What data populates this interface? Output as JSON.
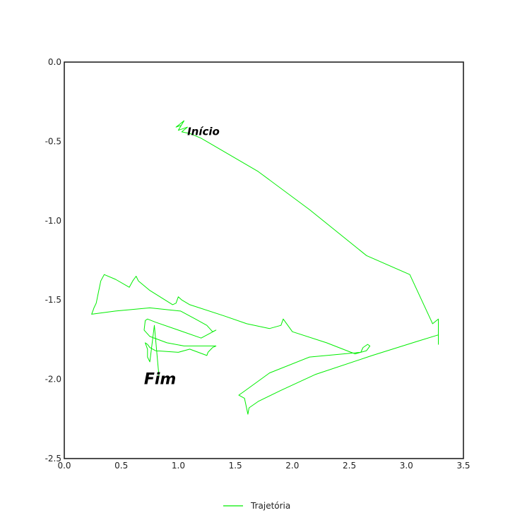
{
  "chart_data": {
    "type": "line",
    "title": "",
    "xlabel": "",
    "ylabel": "",
    "xlim": [
      0.0,
      3.5
    ],
    "ylim": [
      -2.5,
      0.0
    ],
    "x_ticks": [
      0.0,
      0.5,
      1.0,
      1.5,
      2.0,
      2.5,
      3.0,
      3.5
    ],
    "x_tick_labels": [
      "0.0",
      "0.5",
      "1.0",
      "1.5",
      "2.0",
      "2.5",
      "3.0",
      "3.5"
    ],
    "y_ticks": [
      0.0,
      -0.5,
      -1.0,
      -1.5,
      -2.0,
      -2.5
    ],
    "y_tick_labels": [
      "0.0",
      "-0.5",
      "-1.0",
      "-1.5",
      "-2.0",
      "-2.5"
    ],
    "grid": false,
    "legend_position": "bottom-center",
    "series": [
      {
        "name": "Trajetória",
        "color": "#00ee00",
        "points": [
          [
            1.02,
            -0.4
          ],
          [
            0.98,
            -0.41
          ],
          [
            1.05,
            -0.37
          ],
          [
            1.0,
            -0.43
          ],
          [
            1.08,
            -0.41
          ],
          [
            1.03,
            -0.44
          ],
          [
            1.1,
            -0.45
          ],
          [
            1.2,
            -0.48
          ],
          [
            1.7,
            -0.69
          ],
          [
            2.15,
            -0.93
          ],
          [
            2.65,
            -1.22
          ],
          [
            3.03,
            -1.34
          ],
          [
            3.23,
            -1.65
          ],
          [
            3.28,
            -1.62
          ],
          [
            3.28,
            -1.78
          ],
          [
            3.28,
            -1.72
          ],
          [
            3.1,
            -1.76
          ],
          [
            2.7,
            -1.85
          ],
          [
            2.2,
            -1.97
          ],
          [
            1.9,
            -2.07
          ],
          [
            1.7,
            -2.14
          ],
          [
            1.62,
            -2.18
          ],
          [
            1.61,
            -2.22
          ],
          [
            1.58,
            -2.12
          ],
          [
            1.53,
            -2.1
          ],
          [
            1.57,
            -2.08
          ],
          [
            1.8,
            -1.96
          ],
          [
            2.15,
            -1.86
          ],
          [
            2.45,
            -1.84
          ],
          [
            2.6,
            -1.83
          ],
          [
            2.62,
            -1.8
          ],
          [
            2.66,
            -1.78
          ],
          [
            2.68,
            -1.79
          ],
          [
            2.65,
            -1.82
          ],
          [
            2.55,
            -1.84
          ],
          [
            2.3,
            -1.77
          ],
          [
            2.0,
            -1.7
          ],
          [
            1.95,
            -1.65
          ],
          [
            1.92,
            -1.62
          ],
          [
            1.9,
            -1.66
          ],
          [
            1.8,
            -1.68
          ],
          [
            1.6,
            -1.65
          ],
          [
            1.4,
            -1.6
          ],
          [
            1.1,
            -1.53
          ],
          [
            1.03,
            -1.5
          ],
          [
            1.0,
            -1.48
          ],
          [
            0.98,
            -1.52
          ],
          [
            0.95,
            -1.53
          ],
          [
            0.75,
            -1.44
          ],
          [
            0.65,
            -1.38
          ],
          [
            0.63,
            -1.35
          ],
          [
            0.6,
            -1.38
          ],
          [
            0.57,
            -1.42
          ],
          [
            0.45,
            -1.37
          ],
          [
            0.35,
            -1.34
          ],
          [
            0.32,
            -1.38
          ],
          [
            0.3,
            -1.45
          ],
          [
            0.28,
            -1.52
          ],
          [
            0.26,
            -1.55
          ],
          [
            0.25,
            -1.57
          ],
          [
            0.24,
            -1.59
          ],
          [
            0.45,
            -1.57
          ],
          [
            0.75,
            -1.55
          ],
          [
            1.02,
            -1.57
          ],
          [
            1.15,
            -1.62
          ],
          [
            1.25,
            -1.66
          ],
          [
            1.3,
            -1.7
          ],
          [
            1.33,
            -1.69
          ],
          [
            1.2,
            -1.74
          ],
          [
            1.0,
            -1.69
          ],
          [
            0.8,
            -1.64
          ],
          [
            0.73,
            -1.62
          ],
          [
            0.71,
            -1.63
          ],
          [
            0.7,
            -1.69
          ],
          [
            0.75,
            -1.73
          ],
          [
            0.9,
            -1.77
          ],
          [
            1.05,
            -1.79
          ],
          [
            1.15,
            -1.79
          ],
          [
            1.33,
            -1.79
          ],
          [
            1.3,
            -1.8
          ],
          [
            1.26,
            -1.83
          ],
          [
            1.25,
            -1.85
          ],
          [
            1.1,
            -1.81
          ],
          [
            1.0,
            -1.83
          ],
          [
            0.8,
            -1.82
          ],
          [
            0.75,
            -1.8
          ],
          [
            0.73,
            -1.78
          ],
          [
            0.71,
            -1.77
          ],
          [
            0.73,
            -1.81
          ],
          [
            0.73,
            -1.86
          ],
          [
            0.75,
            -1.89
          ],
          [
            0.79,
            -1.66
          ],
          [
            0.83,
            -1.98
          ]
        ]
      }
    ],
    "annotations": [
      {
        "text": "Início",
        "x": 1.22,
        "y": -0.46
      },
      {
        "text": "Fim",
        "x": 0.84,
        "y": -2.03
      }
    ],
    "legend": {
      "entries": [
        "Trajetória"
      ]
    }
  }
}
